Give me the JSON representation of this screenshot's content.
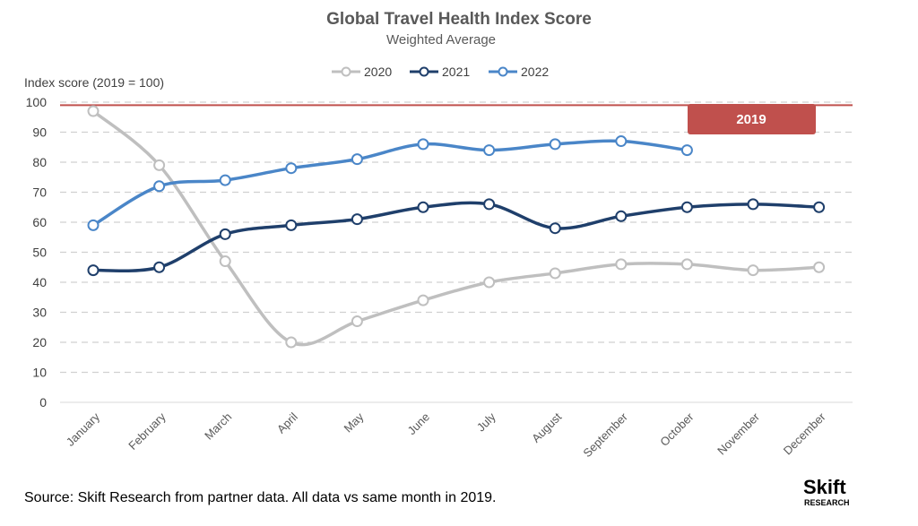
{
  "chart_data": {
    "type": "line",
    "title": "Global Travel Health Index Score",
    "subtitle": "Weighted Average",
    "ylabel": "Index score (2019 = 100)",
    "xlabel": "",
    "ylim": [
      0,
      100
    ],
    "yticks": [
      "0",
      "10",
      "20",
      "30",
      "40",
      "50",
      "60",
      "70",
      "80",
      "90",
      "100"
    ],
    "categories": [
      "January",
      "February",
      "March",
      "April",
      "May",
      "June",
      "July",
      "August",
      "September",
      "October",
      "November",
      "December"
    ],
    "series": [
      {
        "name": "2020",
        "color": "#bfbfbf",
        "values": [
          97,
          79,
          47,
          20,
          27,
          34,
          40,
          43,
          46,
          46,
          44,
          45
        ]
      },
      {
        "name": "2021",
        "color": "#1f3f6b",
        "values": [
          44,
          45,
          56,
          59,
          61,
          65,
          66,
          58,
          62,
          65,
          66,
          65
        ]
      },
      {
        "name": "2022",
        "color": "#4a86c8",
        "values": [
          59,
          72,
          74,
          78,
          81,
          86,
          84,
          86,
          87,
          84,
          null,
          null
        ]
      }
    ],
    "reference_line": {
      "label": "2019",
      "value": 99,
      "color": "#c0504d"
    },
    "grid": true,
    "legend_position": "top-center"
  },
  "source_note": "Source: Skift Research from partner data. All data vs same month in 2019.",
  "logo": {
    "name": "Skift",
    "sub": "RESEARCH"
  }
}
